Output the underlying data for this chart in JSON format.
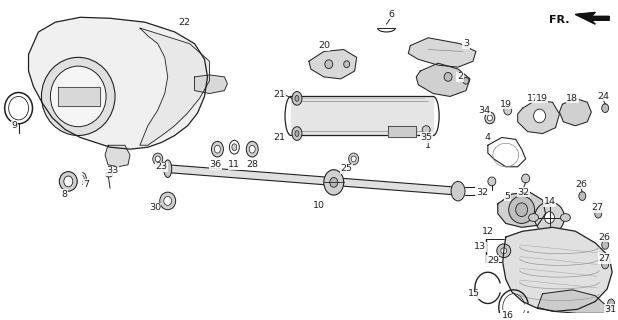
{
  "bg_color": "#ffffff",
  "line_color": "#222222",
  "fill_light": "#e8e8e8",
  "fill_mid": "#d0d0d0",
  "fill_dark": "#b0b0b0",
  "figsize": [
    6.18,
    3.2
  ],
  "dpi": 100
}
